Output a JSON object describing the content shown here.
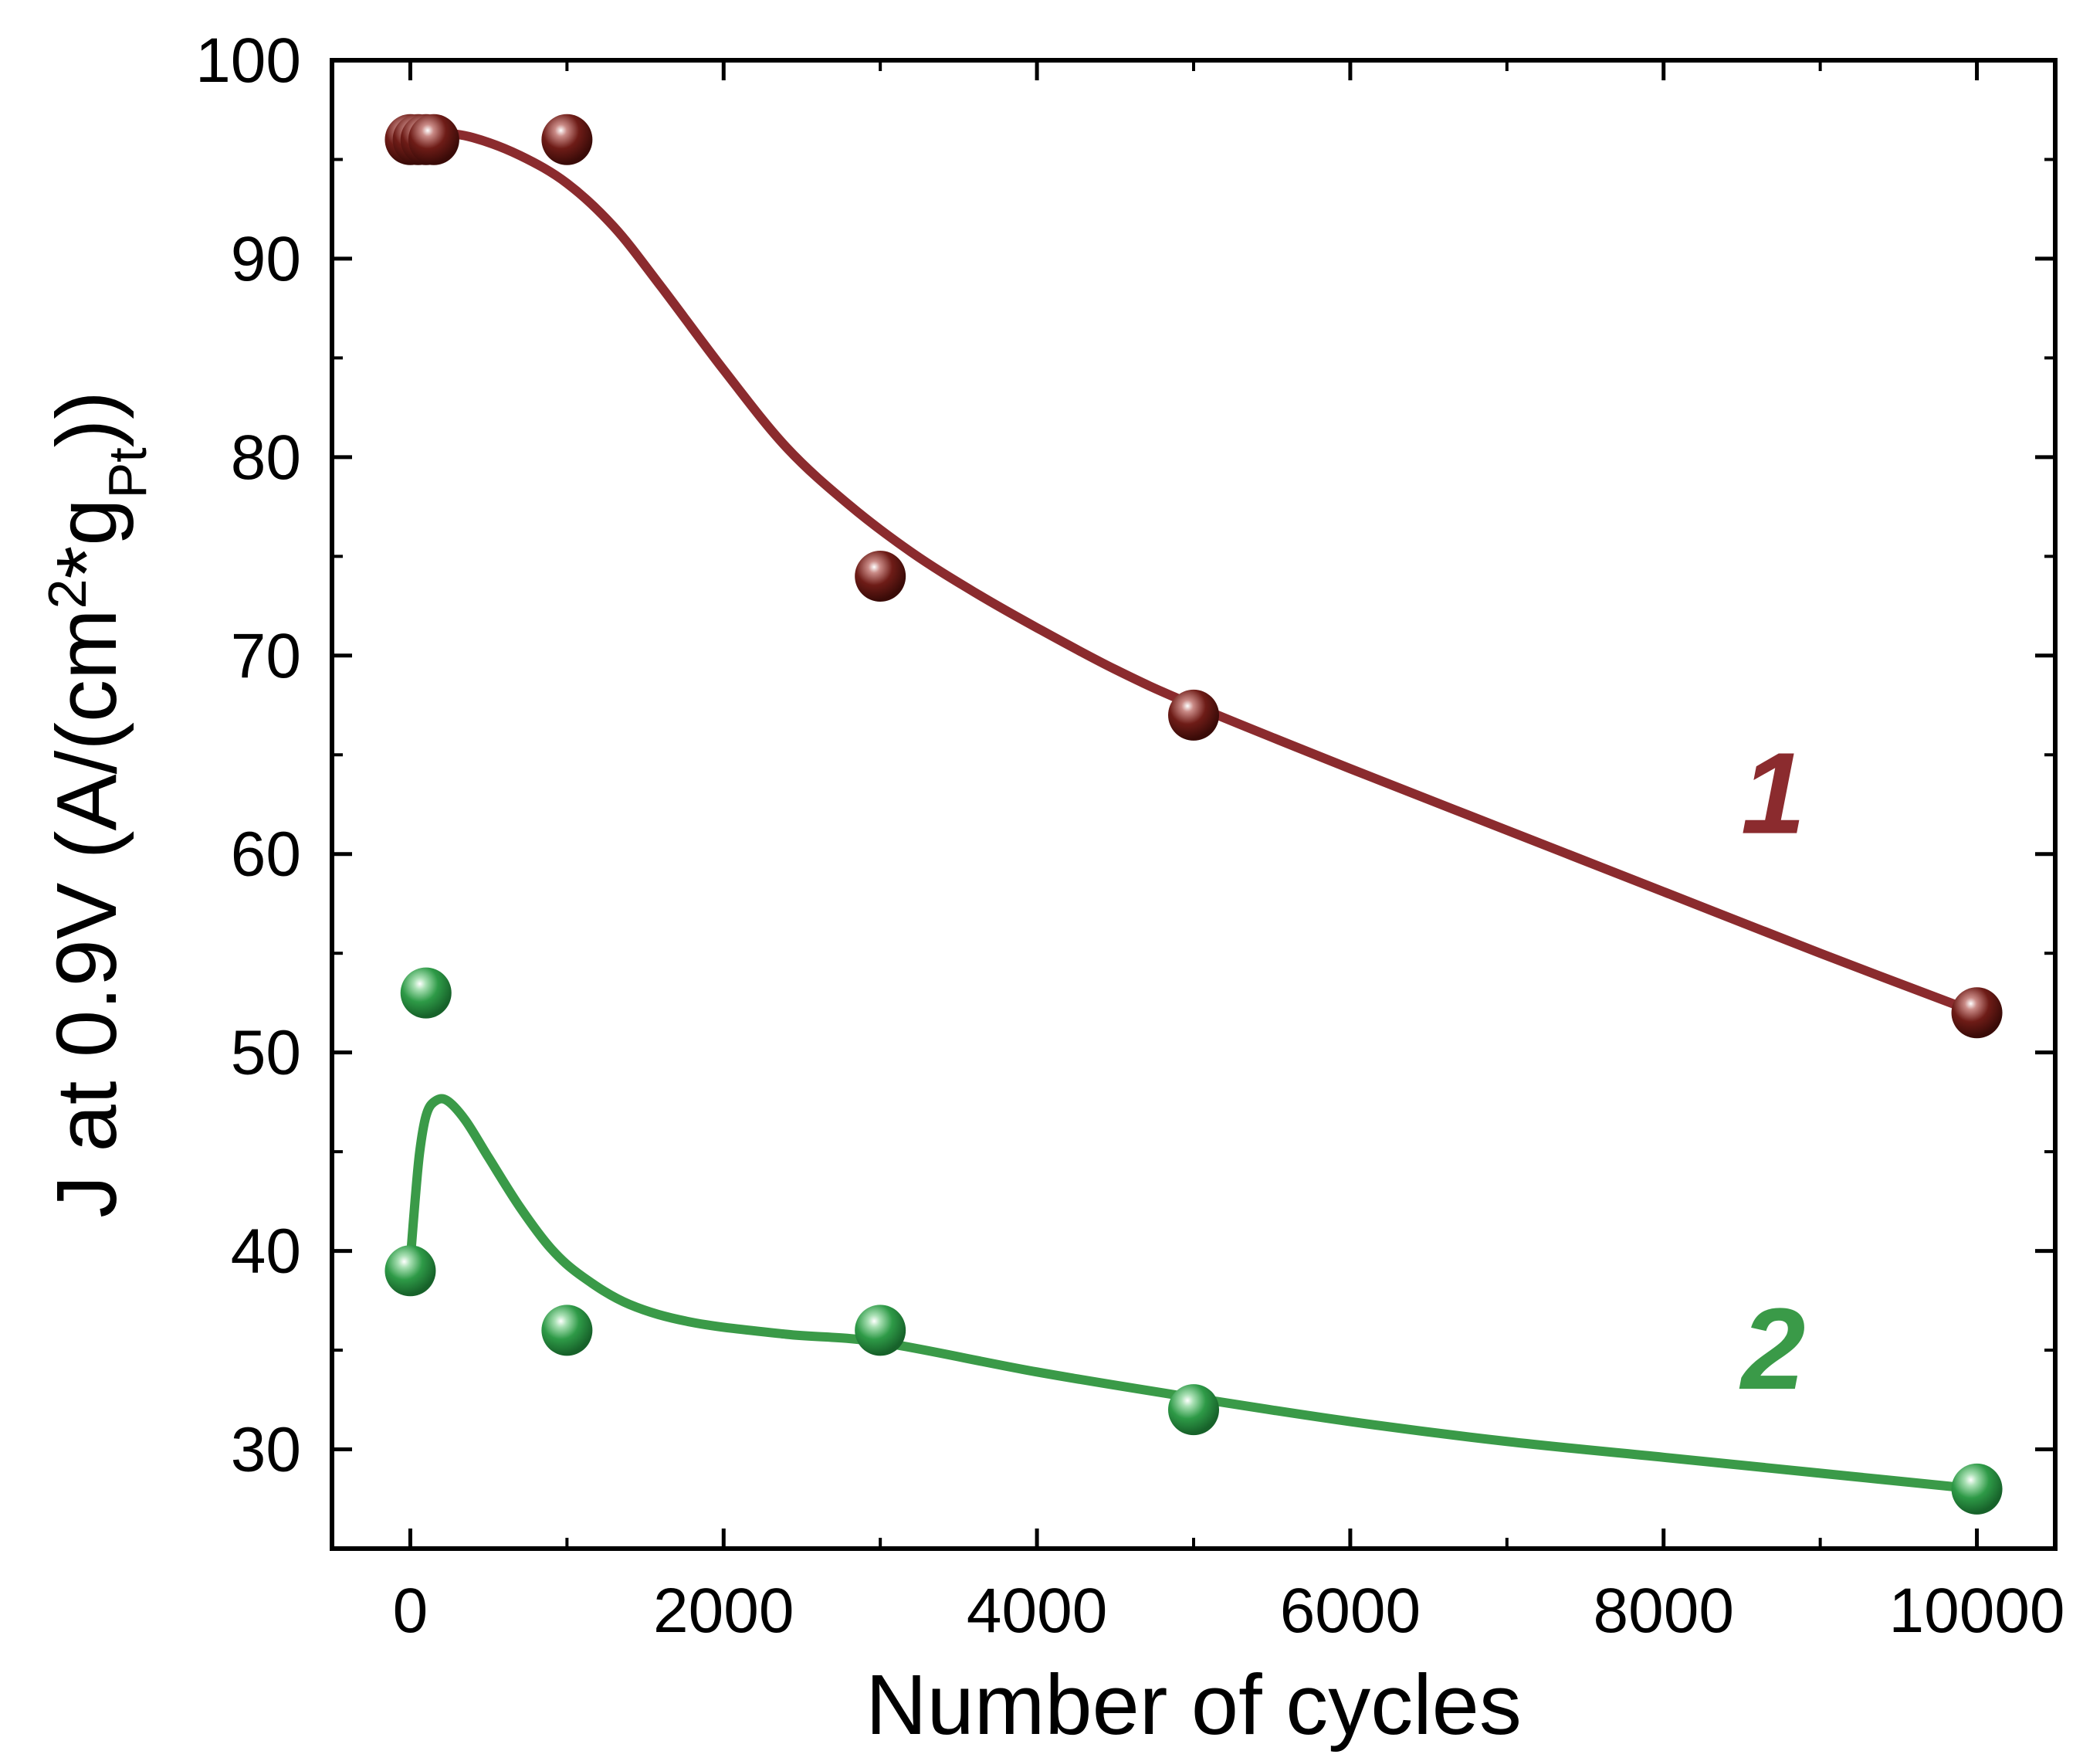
{
  "chart_data": {
    "type": "scatter",
    "xlabel": "Number of cycles",
    "ylabel": {
      "prefix": "J at 0.9V (A/(cm",
      "sup": "2",
      "mid": "*g",
      "sub": "Pt",
      "suffix": "))"
    },
    "xlim": [
      -500,
      10500
    ],
    "ylim": [
      25,
      100
    ],
    "xticks": [
      0,
      2000,
      4000,
      6000,
      8000,
      10000
    ],
    "yticks": [
      30,
      40,
      50,
      60,
      70,
      80,
      90,
      100
    ],
    "grid": false,
    "series": [
      {
        "name": "1",
        "color": "#7a1f1a",
        "line_color": "#8b2b2e",
        "points": [
          {
            "x": 0,
            "y": 96
          },
          {
            "x": 50,
            "y": 96
          },
          {
            "x": 100,
            "y": 96
          },
          {
            "x": 150,
            "y": 96
          },
          {
            "x": 1000,
            "y": 96
          },
          {
            "x": 3000,
            "y": 74
          },
          {
            "x": 5000,
            "y": 67
          },
          {
            "x": 10000,
            "y": 52
          }
        ],
        "fit": [
          {
            "x": 0,
            "y": 96.1
          },
          {
            "x": 200,
            "y": 96.3
          },
          {
            "x": 400,
            "y": 96.1
          },
          {
            "x": 700,
            "y": 95.2
          },
          {
            "x": 1000,
            "y": 93.8
          },
          {
            "x": 1300,
            "y": 91.6
          },
          {
            "x": 1600,
            "y": 88.6
          },
          {
            "x": 2000,
            "y": 84.4
          },
          {
            "x": 2400,
            "y": 80.5
          },
          {
            "x": 2800,
            "y": 77.6
          },
          {
            "x": 3200,
            "y": 75.2
          },
          {
            "x": 3600,
            "y": 73.2
          },
          {
            "x": 4000,
            "y": 71.4
          },
          {
            "x": 4500,
            "y": 69.3
          },
          {
            "x": 5000,
            "y": 67.5
          },
          {
            "x": 6000,
            "y": 64.3
          },
          {
            "x": 7000,
            "y": 61.2
          },
          {
            "x": 8000,
            "y": 58.1
          },
          {
            "x": 9000,
            "y": 55.0
          },
          {
            "x": 10000,
            "y": 52.0
          }
        ]
      },
      {
        "name": "2",
        "color": "#2e9a47",
        "line_color": "#3a9a48",
        "points": [
          {
            "x": 0,
            "y": 39
          },
          {
            "x": 100,
            "y": 53
          },
          {
            "x": 1000,
            "y": 36
          },
          {
            "x": 3000,
            "y": 36
          },
          {
            "x": 5000,
            "y": 32
          },
          {
            "x": 10000,
            "y": 28
          }
        ],
        "fit": [
          {
            "x": 0,
            "y": 39.5
          },
          {
            "x": 30,
            "y": 42.5
          },
          {
            "x": 60,
            "y": 45.0
          },
          {
            "x": 100,
            "y": 46.8
          },
          {
            "x": 150,
            "y": 47.5
          },
          {
            "x": 230,
            "y": 47.6
          },
          {
            "x": 350,
            "y": 46.6
          },
          {
            "x": 500,
            "y": 44.7
          },
          {
            "x": 700,
            "y": 42.2
          },
          {
            "x": 900,
            "y": 40.1
          },
          {
            "x": 1100,
            "y": 38.7
          },
          {
            "x": 1400,
            "y": 37.3
          },
          {
            "x": 1800,
            "y": 36.4
          },
          {
            "x": 2400,
            "y": 35.8
          },
          {
            "x": 3000,
            "y": 35.4
          },
          {
            "x": 4000,
            "y": 33.9
          },
          {
            "x": 5000,
            "y": 32.6
          },
          {
            "x": 6000,
            "y": 31.4
          },
          {
            "x": 7000,
            "y": 30.4
          },
          {
            "x": 8000,
            "y": 29.6
          },
          {
            "x": 9000,
            "y": 28.8
          },
          {
            "x": 10000,
            "y": 28.0
          }
        ]
      }
    ],
    "annotations": [
      {
        "text": "1",
        "series": 0,
        "x": 8700,
        "y": 63
      },
      {
        "text": "2",
        "series": 1,
        "x": 8700,
        "y": 35
      }
    ]
  }
}
